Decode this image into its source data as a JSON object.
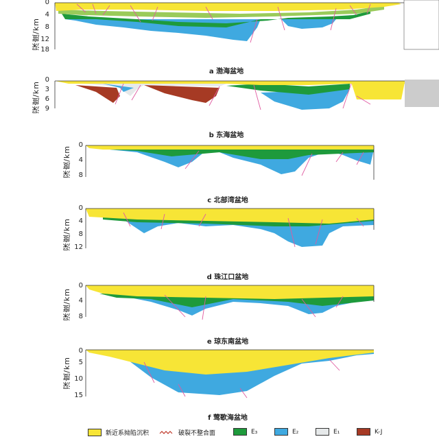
{
  "yaxis_title": "深度/km",
  "panels": [
    {
      "key": "a",
      "caption": "a  渤海盆地",
      "ticks": [
        "0",
        "4",
        "8",
        "12",
        "18"
      ]
    },
    {
      "key": "b",
      "caption": "b  东海盆地",
      "ticks": [
        "0",
        "3",
        "6",
        "9"
      ]
    },
    {
      "key": "c",
      "caption": "c  北部湾盆地",
      "ticks": [
        "0",
        "4",
        "8"
      ]
    },
    {
      "key": "d",
      "caption": "d  珠江口盆地",
      "ticks": [
        "0",
        "4",
        "8",
        "12"
      ]
    },
    {
      "key": "e",
      "caption": "e  琼东南盆地",
      "ticks": [
        "0",
        "4",
        "8"
      ]
    },
    {
      "key": "f",
      "caption": "f  莺歌海盆地",
      "ticks": [
        "0",
        "5",
        "10",
        "15"
      ]
    }
  ],
  "legend": [
    {
      "label": "新近系拗陷沉积",
      "color": "#f7e536"
    },
    {
      "label": "破裂不整合面",
      "color": "#ffffff"
    },
    {
      "label": "E₃",
      "color": "#1e9a3c"
    },
    {
      "label": "E₂",
      "color": "#3fa9e0"
    },
    {
      "label": "E₁",
      "color": "#e6e9ea"
    },
    {
      "label": "K-J",
      "color": "#a63a24"
    }
  ]
}
